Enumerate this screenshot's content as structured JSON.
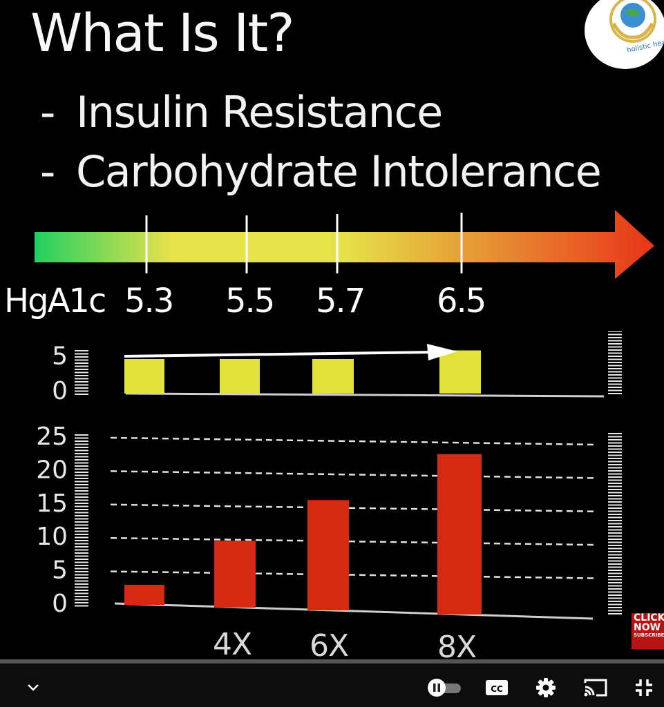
{
  "slide": {
    "title": "What Is It?",
    "bullets": [
      {
        "dash": "-",
        "text": "Insulin Resistance"
      },
      {
        "dash": "-",
        "text": "Carbohydrate Intolerance"
      }
    ],
    "logo_text": "holistic health ce",
    "hga1c_label": "HgA1c",
    "hga1c_markers": [
      "5.3",
      "5.5",
      "5.7",
      "6.5"
    ],
    "colors": {
      "gradient_start": "#22d060",
      "gradient_mid": "#e6e24a",
      "gradient_end": "#e83418",
      "top_bar": "#e2e23c",
      "bottom_bar": "#d42a12"
    }
  },
  "chart_data": [
    {
      "type": "bar",
      "categories": [
        "5.3",
        "5.5",
        "5.7",
        "6.5"
      ],
      "values": [
        4,
        4,
        4,
        5
      ],
      "ytick_labels": [
        "0",
        "5"
      ],
      "ylim": [
        0,
        6
      ]
    },
    {
      "type": "bar",
      "categories": [
        "",
        "4X",
        "6X",
        "8X"
      ],
      "values": [
        3,
        10,
        16.5,
        24
      ],
      "ytick_labels": [
        "0",
        "5",
        "10",
        "15",
        "20",
        "25"
      ],
      "ylim": [
        0,
        25
      ],
      "grid": true
    }
  ],
  "player": {
    "subscribe": [
      "CLICK",
      "NOW",
      "SUBSCRIBE"
    ],
    "cc_label": "CC",
    "icons": [
      "chevron-down-icon",
      "pause-icon",
      "cc-icon",
      "gear-icon",
      "cast-icon",
      "exit-fullscreen-icon"
    ],
    "progress": 0.0
  }
}
